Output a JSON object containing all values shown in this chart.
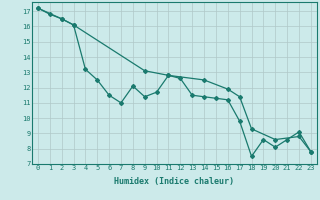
{
  "xlabel": "Humidex (Indice chaleur)",
  "bg_color": "#cceaea",
  "grid_color": "#b0c8c8",
  "line_color": "#1a7a6e",
  "xlim": [
    -0.5,
    23.5
  ],
  "ylim": [
    7,
    17.6
  ],
  "yticks": [
    7,
    8,
    9,
    10,
    11,
    12,
    13,
    14,
    15,
    16,
    17
  ],
  "xticks": [
    0,
    1,
    2,
    3,
    4,
    5,
    6,
    7,
    8,
    9,
    10,
    11,
    12,
    13,
    14,
    15,
    16,
    17,
    18,
    19,
    20,
    21,
    22,
    23
  ],
  "line1_x": [
    0,
    1,
    2,
    3,
    4,
    5,
    6,
    7,
    8,
    9,
    10,
    11,
    12,
    13,
    14,
    15,
    16,
    17,
    18,
    19,
    20,
    21,
    22,
    23
  ],
  "line1_y": [
    17.2,
    16.8,
    16.5,
    16.1,
    13.2,
    12.5,
    11.5,
    11.0,
    12.1,
    11.4,
    11.7,
    12.8,
    12.6,
    11.5,
    11.4,
    11.3,
    11.2,
    9.8,
    7.5,
    8.6,
    8.1,
    8.6,
    9.1,
    7.8
  ],
  "line2_x": [
    0,
    2,
    3,
    9,
    11,
    14,
    16,
    17,
    18,
    20,
    22,
    23
  ],
  "line2_y": [
    17.2,
    16.5,
    16.1,
    13.1,
    12.8,
    12.5,
    11.9,
    11.4,
    9.3,
    8.6,
    8.8,
    7.8
  ]
}
